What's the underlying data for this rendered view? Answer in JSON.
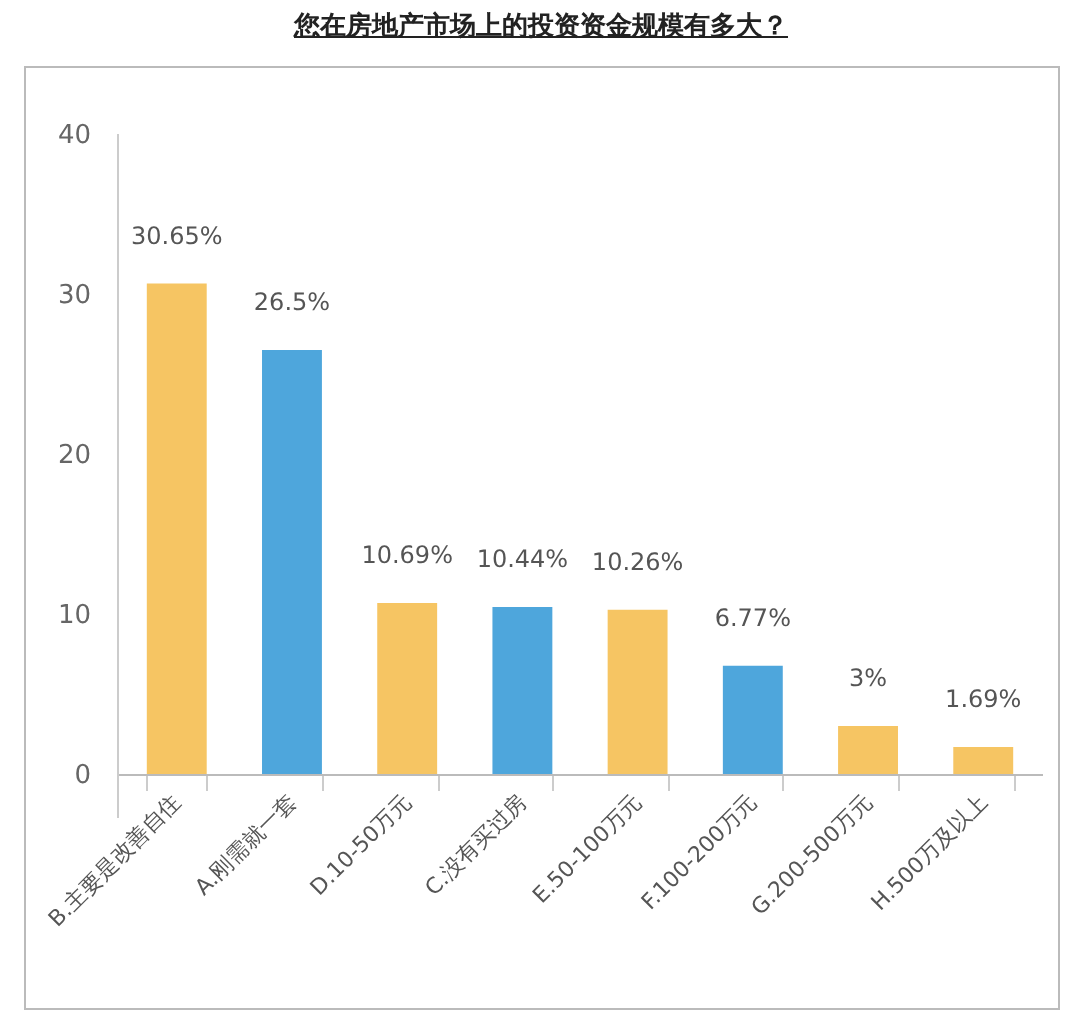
{
  "chart_data": {
    "type": "bar",
    "title": "您在房地产市场上的投资资金规模有多大？",
    "categories": [
      "B.主要是改善自住",
      "A.刚需就一套",
      "D.10-50万元",
      "C.没有买过房",
      "E.50-100万元",
      "F.100-200万元",
      "G.200-500万元",
      "H.500万及以上"
    ],
    "values": [
      30.65,
      26.5,
      10.69,
      10.44,
      10.26,
      6.77,
      3,
      1.69
    ],
    "value_labels": [
      "30.65%",
      "26.5%",
      "10.69%",
      "10.44%",
      "10.26%",
      "6.77%",
      "3%",
      "1.69%"
    ],
    "colors": [
      "#f6c563",
      "#4ea6dc",
      "#f6c563",
      "#4ea6dc",
      "#f6c563",
      "#4ea6dc",
      "#f6c563",
      "#f6c563"
    ],
    "ylim": [
      0,
      40
    ],
    "yticks": [
      0,
      10,
      20,
      30,
      40
    ],
    "grid": false,
    "legend": false
  }
}
